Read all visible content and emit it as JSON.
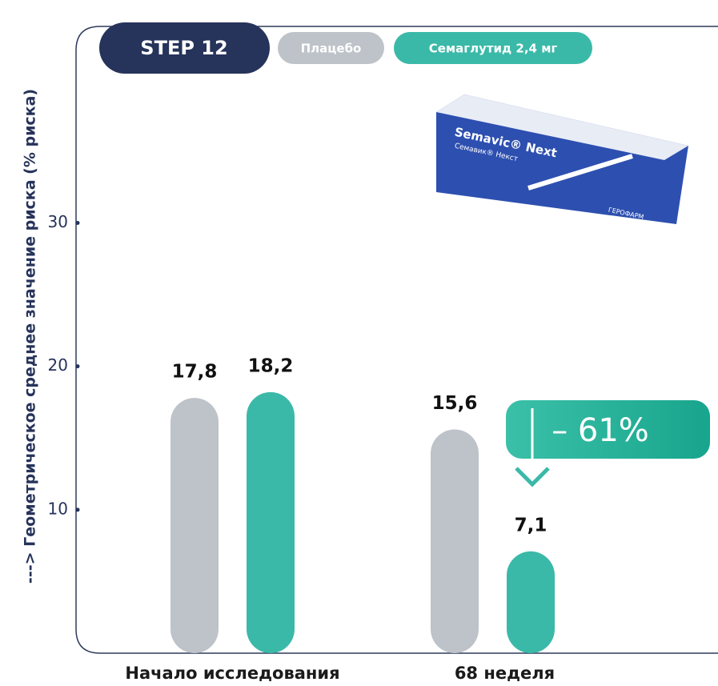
{
  "chart_data": {
    "type": "bar",
    "title": "STEP 12",
    "y_label": "---> Геометрическое среднее значение риска (% риска)",
    "categories": [
      "Начало исследования",
      "68 неделя"
    ],
    "series": [
      {
        "name": "Плацебо",
        "color": "#bdc3c8",
        "values": [
          17.8,
          15.6
        ],
        "value_labels": [
          "17,8",
          "15,6"
        ]
      },
      {
        "name": "Семаглутид 2,4 мг",
        "color": "#3bb9a8",
        "values": [
          18.2,
          7.1
        ],
        "value_labels": [
          "18,2",
          "7,1"
        ]
      }
    ],
    "ylim": [
      0,
      43.7
    ],
    "yticks": [
      10,
      20,
      30
    ],
    "grid": false,
    "annotation": "– 61%",
    "product": {
      "brand": "Semavic® Next",
      "brand_ru": "Семавик® Некст",
      "maker": "ГЕРОФАРМ"
    }
  }
}
